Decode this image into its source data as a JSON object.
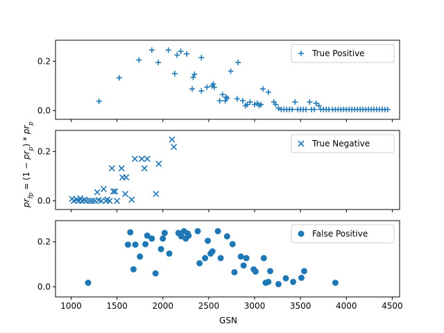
{
  "chart_data": {
    "type": "scatter",
    "layout": "3 vertically stacked subplots sharing x-axis",
    "xlabel": "GSN",
    "ylabel": "pr_fp = (1 - pr_p) * pr_p",
    "xlim": [
      830,
      4580
    ],
    "xticks": [
      1000,
      1500,
      2000,
      2500,
      3000,
      3500,
      4000,
      4500
    ],
    "color": "#1f77b4",
    "panels": [
      {
        "legend": "True Positive",
        "marker": "plus",
        "legend_position": "top-right",
        "ylim": [
          -0.035,
          0.285
        ],
        "yticks": [
          0.0,
          0.2
        ],
        "points": [
          [
            1305,
            0.038
          ],
          [
            1525,
            0.133
          ],
          [
            1740,
            0.205
          ],
          [
            1880,
            0.245
          ],
          [
            1950,
            0.195
          ],
          [
            2060,
            0.245
          ],
          [
            2130,
            0.15
          ],
          [
            2155,
            0.225
          ],
          [
            2195,
            0.24
          ],
          [
            2260,
            0.23
          ],
          [
            2320,
            0.088
          ],
          [
            2330,
            0.135
          ],
          [
            2345,
            0.147
          ],
          [
            2420,
            0.215
          ],
          [
            2420,
            0.08
          ],
          [
            2480,
            0.095
          ],
          [
            2535,
            0.1
          ],
          [
            2550,
            0.108
          ],
          [
            2560,
            0.095
          ],
          [
            2620,
            0.04
          ],
          [
            2650,
            0.065
          ],
          [
            2680,
            0.04
          ],
          [
            2690,
            0.055
          ],
          [
            2700,
            0.05
          ],
          [
            2740,
            0.16
          ],
          [
            2810,
            0.048
          ],
          [
            2820,
            0.195
          ],
          [
            2870,
            0.04
          ],
          [
            2900,
            0.02
          ],
          [
            2920,
            0.025
          ],
          [
            2950,
            0.035
          ],
          [
            3000,
            0.025
          ],
          [
            3030,
            0.03
          ],
          [
            3050,
            0.02
          ],
          [
            3070,
            0.025
          ],
          [
            3090,
            0.088
          ],
          [
            3150,
            0.075
          ],
          [
            3210,
            0.035
          ],
          [
            3230,
            0.025
          ],
          [
            3260,
            0.01
          ],
          [
            3290,
            0.005
          ],
          [
            3320,
            0.005
          ],
          [
            3350,
            0.005
          ],
          [
            3380,
            0.005
          ],
          [
            3410,
            0.005
          ],
          [
            3440,
            0.035
          ],
          [
            3470,
            0.005
          ],
          [
            3500,
            0.005
          ],
          [
            3530,
            0.005
          ],
          [
            3560,
            0.005
          ],
          [
            3600,
            0.035
          ],
          [
            3620,
            0.005
          ],
          [
            3650,
            0.005
          ],
          [
            3670,
            0.03
          ],
          [
            3700,
            0.02
          ],
          [
            3720,
            0.005
          ],
          [
            3750,
            0.005
          ],
          [
            3780,
            0.005
          ],
          [
            3810,
            0.005
          ],
          [
            3850,
            0.005
          ],
          [
            3880,
            0.005
          ],
          [
            3910,
            0.005
          ],
          [
            3940,
            0.005
          ],
          [
            3970,
            0.005
          ],
          [
            4000,
            0.005
          ],
          [
            4030,
            0.005
          ],
          [
            4060,
            0.005
          ],
          [
            4090,
            0.005
          ],
          [
            4120,
            0.005
          ],
          [
            4150,
            0.005
          ],
          [
            4180,
            0.005
          ],
          [
            4210,
            0.005
          ],
          [
            4240,
            0.005
          ],
          [
            4270,
            0.005
          ],
          [
            4300,
            0.005
          ],
          [
            4330,
            0.005
          ],
          [
            4360,
            0.005
          ],
          [
            4390,
            0.005
          ],
          [
            4420,
            0.005
          ],
          [
            4450,
            0.005
          ]
        ]
      },
      {
        "legend": "True Negative",
        "marker": "x",
        "legend_position": "top-right",
        "ylim": [
          -0.035,
          0.285
        ],
        "yticks": [
          0.0,
          0.2
        ],
        "points": [
          [
            1010,
            0.008
          ],
          [
            1030,
            0.0
          ],
          [
            1060,
            0.005
          ],
          [
            1085,
            0.0
          ],
          [
            1100,
            0.01
          ],
          [
            1120,
            0.0
          ],
          [
            1145,
            0.005
          ],
          [
            1165,
            0.0
          ],
          [
            1200,
            0.0
          ],
          [
            1230,
            0.0
          ],
          [
            1260,
            0.0
          ],
          [
            1285,
            0.035
          ],
          [
            1300,
            0.003
          ],
          [
            1330,
            0.0
          ],
          [
            1355,
            0.048
          ],
          [
            1380,
            0.0
          ],
          [
            1395,
            0.005
          ],
          [
            1420,
            0.0
          ],
          [
            1445,
            0.132
          ],
          [
            1460,
            0.038
          ],
          [
            1480,
            0.038
          ],
          [
            1500,
            0.0
          ],
          [
            1550,
            0.132
          ],
          [
            1560,
            0.095
          ],
          [
            1590,
            0.028
          ],
          [
            1600,
            0.095
          ],
          [
            1660,
            0.005
          ],
          [
            1695,
            0.17
          ],
          [
            1770,
            0.17
          ],
          [
            1800,
            0.132
          ],
          [
            1830,
            0.17
          ],
          [
            1925,
            0.028
          ],
          [
            1955,
            0.15
          ],
          [
            2100,
            0.248
          ],
          [
            2120,
            0.218
          ]
        ]
      },
      {
        "legend": "False Positive",
        "marker": "circle",
        "legend_position": "top-right",
        "ylim": [
          -0.045,
          0.295
        ],
        "yticks": [
          0.0,
          0.2
        ],
        "points": [
          [
            1185,
            0.018
          ],
          [
            1620,
            0.188
          ],
          [
            1645,
            0.243
          ],
          [
            1680,
            0.078
          ],
          [
            1700,
            0.188
          ],
          [
            1750,
            0.135
          ],
          [
            1810,
            0.19
          ],
          [
            1830,
            0.228
          ],
          [
            1880,
            0.215
          ],
          [
            1920,
            0.06
          ],
          [
            1980,
            0.168
          ],
          [
            2000,
            0.215
          ],
          [
            2020,
            0.24
          ],
          [
            2070,
            0.148
          ],
          [
            2170,
            0.24
          ],
          [
            2200,
            0.225
          ],
          [
            2230,
            0.248
          ],
          [
            2250,
            0.215
          ],
          [
            2270,
            0.238
          ],
          [
            2280,
            0.228
          ],
          [
            2380,
            0.248
          ],
          [
            2400,
            0.105
          ],
          [
            2460,
            0.128
          ],
          [
            2490,
            0.205
          ],
          [
            2520,
            0.148
          ],
          [
            2540,
            0.158
          ],
          [
            2600,
            0.248
          ],
          [
            2630,
            0.128
          ],
          [
            2700,
            0.225
          ],
          [
            2760,
            0.19
          ],
          [
            2780,
            0.065
          ],
          [
            2850,
            0.135
          ],
          [
            2880,
            0.095
          ],
          [
            2910,
            0.128
          ],
          [
            2990,
            0.078
          ],
          [
            3010,
            0.068
          ],
          [
            3100,
            0.128
          ],
          [
            3120,
            0.018
          ],
          [
            3150,
            0.022
          ],
          [
            3170,
            0.07
          ],
          [
            3260,
            0.012
          ],
          [
            3340,
            0.038
          ],
          [
            3420,
            0.022
          ],
          [
            3510,
            0.04
          ],
          [
            3540,
            0.07
          ],
          [
            3880,
            0.018
          ]
        ]
      }
    ]
  },
  "labels": {
    "xlabel": "GSN",
    "ylabel_base": "pr",
    "ylabel_fp_sub": "fp",
    "ylabel_eq": " = (1 − ",
    "ylabel_p_base": "pr",
    "ylabel_p_sub": "p",
    "ylabel_mid": ") * ",
    "ylabel_p2_base": "pr",
    "ylabel_p2_sub": "p"
  }
}
